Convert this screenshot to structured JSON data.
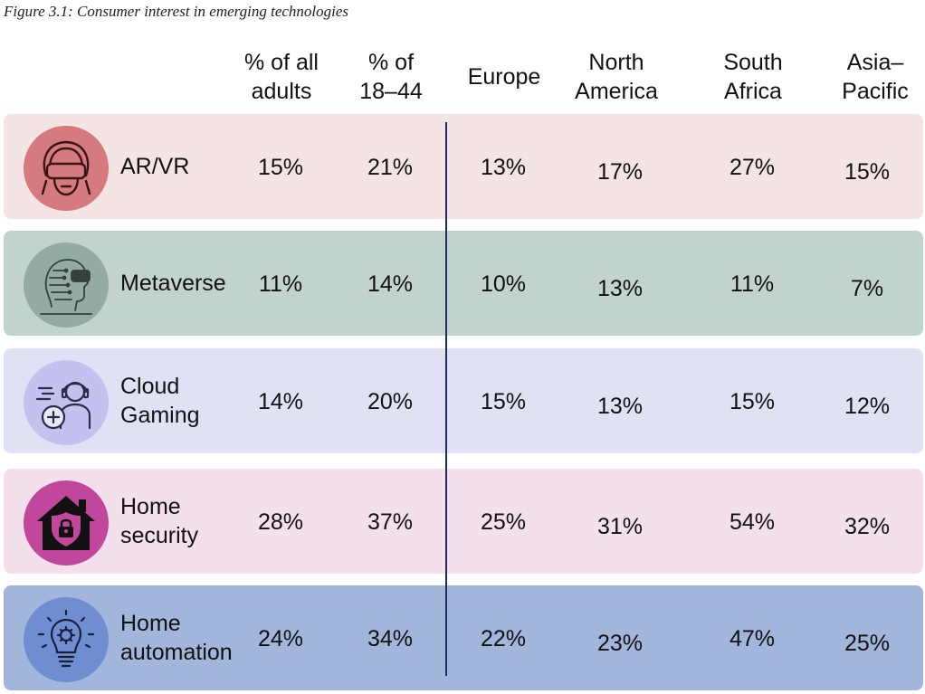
{
  "caption": "Figure 3.1: Consumer interest in emerging technologies",
  "columns": [
    {
      "line1": "% of all",
      "line2": "adults"
    },
    {
      "line1": "% of",
      "line2": "18–44"
    },
    {
      "line1": "Europe",
      "line2": ""
    },
    {
      "line1": "North",
      "line2": "America"
    },
    {
      "line1": "South",
      "line2": "Africa"
    },
    {
      "line1": "Asia–",
      "line2": "Pacific"
    }
  ],
  "colors": {
    "divider": "#1f2a6b"
  },
  "chart_data": {
    "type": "table",
    "title": "Figure 3.1: Consumer interest in emerging technologies",
    "columns": [
      "% of all adults",
      "% of 18–44",
      "Europe",
      "North America",
      "South Africa",
      "Asia–Pacific"
    ],
    "rows": [
      {
        "label_line1": "AR/VR",
        "label_line2": "",
        "icon": "vr-headset-icon",
        "bg": "#f4e4e4",
        "circle": "#d57a7e",
        "values": [
          "15%",
          "21%",
          "13%",
          "17%",
          "27%",
          "15%"
        ]
      },
      {
        "label_line1": "Metaverse",
        "label_line2": "",
        "icon": "digital-human-vr-icon",
        "bg": "#c1d3cc",
        "circle": "#94aba1",
        "values": [
          "11%",
          "14%",
          "10%",
          "13%",
          "11%",
          "7%"
        ]
      },
      {
        "label_line1": "Cloud",
        "label_line2": "Gaming",
        "icon": "gamer-headset-icon",
        "bg": "#e1e1f5",
        "circle": "#c3c2ee",
        "values": [
          "14%",
          "20%",
          "15%",
          "13%",
          "15%",
          "12%"
        ]
      },
      {
        "label_line1": "Home",
        "label_line2": "security",
        "icon": "home-lock-icon",
        "bg": "#f3e0ec",
        "circle": "#c0479c",
        "values": [
          "28%",
          "37%",
          "25%",
          "31%",
          "54%",
          "32%"
        ]
      },
      {
        "label_line1": "Home",
        "label_line2": "automation",
        "icon": "lightbulb-gear-icon",
        "bg": "#a2b5db",
        "circle": "#6f8ed2",
        "values": [
          "24%",
          "34%",
          "22%",
          "23%",
          "47%",
          "25%"
        ]
      }
    ]
  }
}
